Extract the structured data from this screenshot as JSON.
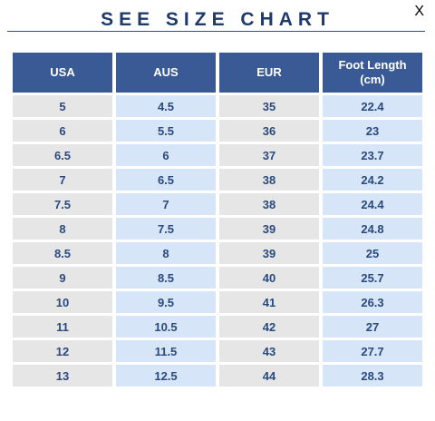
{
  "title": "SEE SIZE CHART",
  "close_label": "X",
  "headers": {
    "usa": "USA",
    "aus": "AUS",
    "eur": "EUR",
    "foot_length_line1": "Foot Length",
    "foot_length_line2": "(cm)"
  },
  "rows": [
    {
      "usa": "5",
      "aus": "4.5",
      "eur": "35",
      "cm": "22.4"
    },
    {
      "usa": "6",
      "aus": "5.5",
      "eur": "36",
      "cm": "23"
    },
    {
      "usa": "6.5",
      "aus": "6",
      "eur": "37",
      "cm": "23.7"
    },
    {
      "usa": "7",
      "aus": "6.5",
      "eur": "38",
      "cm": "24.2"
    },
    {
      "usa": "7.5",
      "aus": "7",
      "eur": "38",
      "cm": "24.4"
    },
    {
      "usa": "8",
      "aus": "7.5",
      "eur": "39",
      "cm": "24.8"
    },
    {
      "usa": "8.5",
      "aus": "8",
      "eur": "39",
      "cm": "25"
    },
    {
      "usa": "9",
      "aus": "8.5",
      "eur": "40",
      "cm": "25.7"
    },
    {
      "usa": "10",
      "aus": "9.5",
      "eur": "41",
      "cm": "26.3"
    },
    {
      "usa": "11",
      "aus": "10.5",
      "eur": "42",
      "cm": "27"
    },
    {
      "usa": "12",
      "aus": "11.5",
      "eur": "43",
      "cm": "27.7"
    },
    {
      "usa": "13",
      "aus": "12.5",
      "eur": "44",
      "cm": "28.3"
    }
  ],
  "colors": {
    "title": "#1f3a6b",
    "header_bg": "#3a5a96",
    "header_text": "#ffffff",
    "cell_gray": "#e6e6e6",
    "cell_blue": "#d6e5f7",
    "cell_text": "#2a4a7d"
  },
  "icons": {
    "close": "close-icon"
  }
}
